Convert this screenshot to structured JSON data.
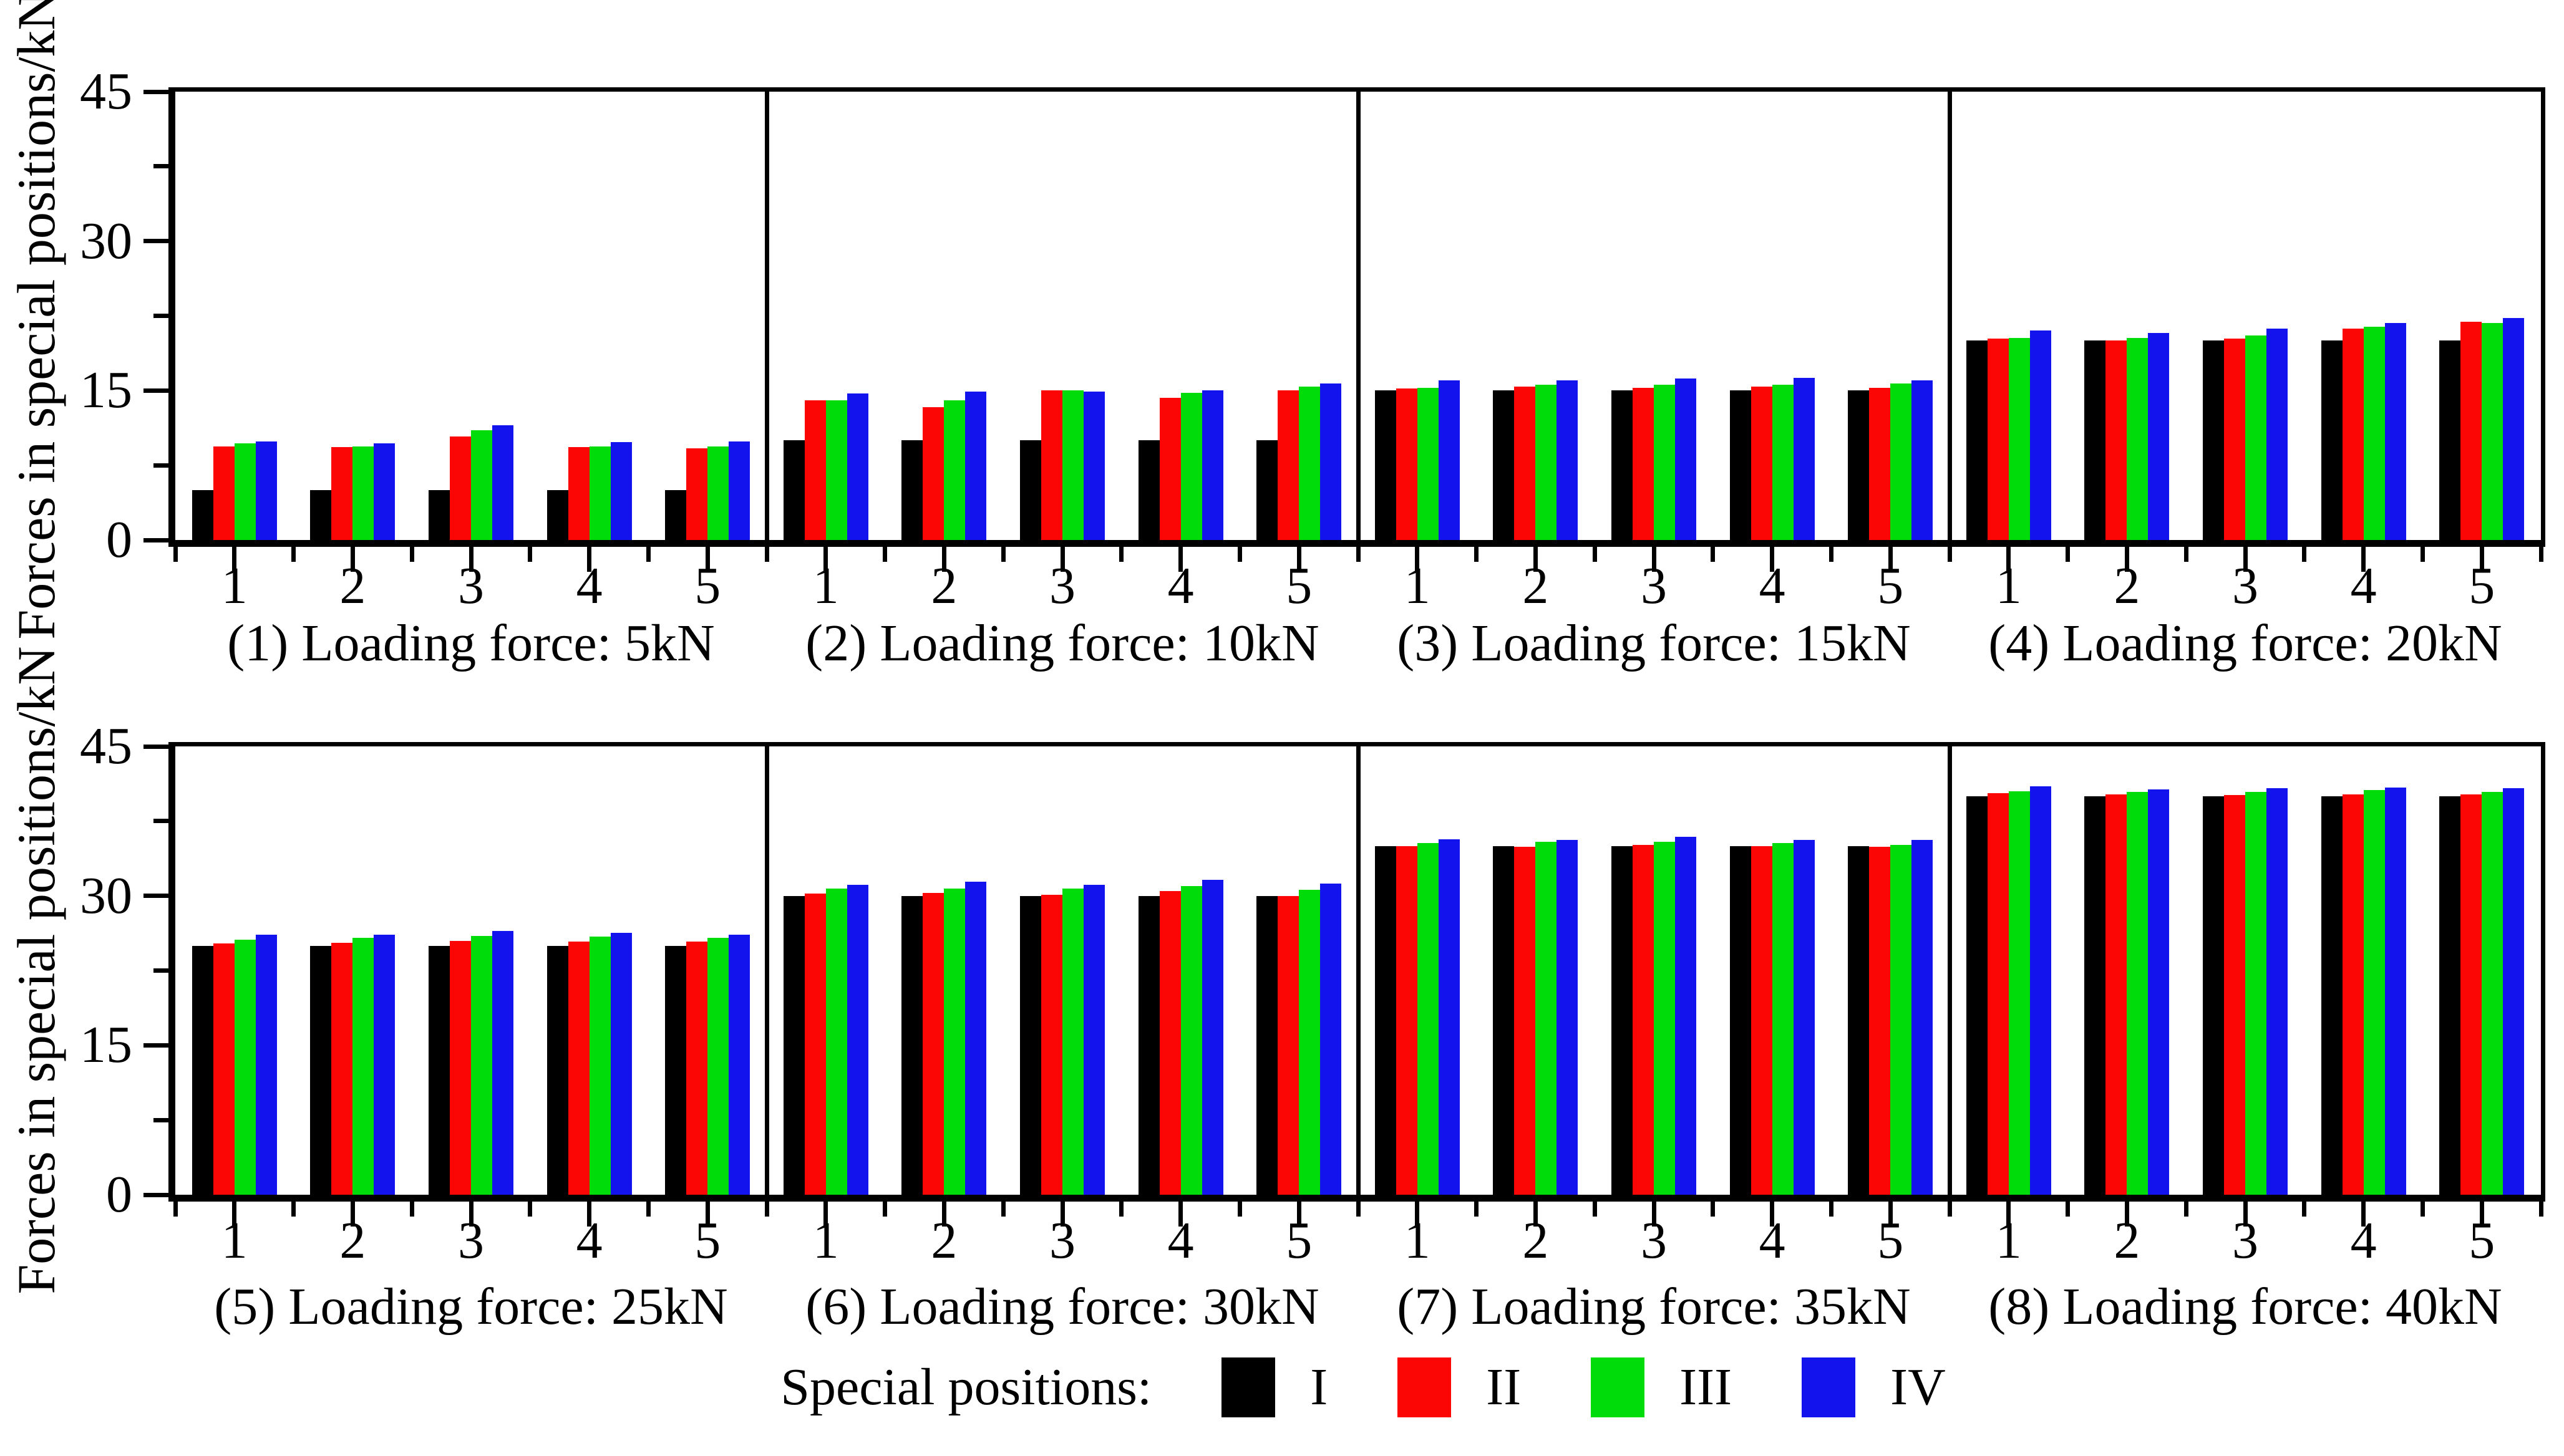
{
  "figure": {
    "y_axis_label": "Forces in special positions/kN",
    "y_tick_labels": [
      "0",
      "15",
      "30",
      "45"
    ],
    "y_major_ticks": [
      0,
      15,
      30,
      45
    ],
    "y_minor_ticks": [
      7.5,
      22.5,
      37.5
    ],
    "ylim": [
      0,
      45
    ],
    "legend": {
      "title": "Special positions:",
      "entries": [
        {
          "label": "I",
          "color": "#000000"
        },
        {
          "label": "II",
          "color": "#fb0505"
        },
        {
          "label": "III",
          "color": "#00dc0a"
        },
        {
          "label": "IV",
          "color": "#1313ee"
        }
      ]
    }
  },
  "chart_data": [
    {
      "type": "bar",
      "caption": "(1) Loading force: 5kN",
      "categories": [
        "1",
        "2",
        "3",
        "4",
        "5"
      ],
      "ylim": [
        0,
        45
      ],
      "series": [
        {
          "name": "I",
          "values": [
            5,
            5,
            5,
            5,
            5
          ]
        },
        {
          "name": "II",
          "values": [
            9.4,
            9.3,
            10.4,
            9.3,
            9.2
          ]
        },
        {
          "name": "III",
          "values": [
            9.7,
            9.4,
            11.0,
            9.4,
            9.4
          ]
        },
        {
          "name": "IV",
          "values": [
            9.9,
            9.7,
            11.5,
            9.8,
            9.9
          ]
        }
      ]
    },
    {
      "type": "bar",
      "caption": "(2) Loading force: 10kN",
      "categories": [
        "1",
        "2",
        "3",
        "4",
        "5"
      ],
      "ylim": [
        0,
        45
      ],
      "series": [
        {
          "name": "I",
          "values": [
            10,
            10,
            10,
            10,
            10
          ]
        },
        {
          "name": "II",
          "values": [
            14.0,
            13.3,
            15.0,
            14.3,
            15.0
          ]
        },
        {
          "name": "III",
          "values": [
            14.0,
            14.0,
            15.0,
            14.8,
            15.4
          ]
        },
        {
          "name": "IV",
          "values": [
            14.7,
            14.9,
            14.9,
            15.0,
            15.7
          ]
        }
      ]
    },
    {
      "type": "bar",
      "caption": "(3) Loading force: 15kN",
      "categories": [
        "1",
        "2",
        "3",
        "4",
        "5"
      ],
      "ylim": [
        0,
        45
      ],
      "series": [
        {
          "name": "I",
          "values": [
            15,
            15,
            15,
            15,
            15
          ]
        },
        {
          "name": "II",
          "values": [
            15.2,
            15.4,
            15.3,
            15.4,
            15.3
          ]
        },
        {
          "name": "III",
          "values": [
            15.3,
            15.6,
            15.6,
            15.6,
            15.7
          ]
        },
        {
          "name": "IV",
          "values": [
            16.0,
            16.0,
            16.2,
            16.3,
            16.0
          ]
        }
      ]
    },
    {
      "type": "bar",
      "caption": "(4) Loading force: 20kN",
      "categories": [
        "1",
        "2",
        "3",
        "4",
        "5"
      ],
      "ylim": [
        0,
        45
      ],
      "series": [
        {
          "name": "I",
          "values": [
            20,
            20,
            20,
            20,
            20
          ]
        },
        {
          "name": "II",
          "values": [
            20.2,
            20.0,
            20.2,
            21.2,
            21.9
          ]
        },
        {
          "name": "III",
          "values": [
            20.3,
            20.3,
            20.5,
            21.4,
            21.8
          ]
        },
        {
          "name": "IV",
          "values": [
            21.0,
            20.8,
            21.2,
            21.8,
            22.3
          ]
        }
      ]
    },
    {
      "type": "bar",
      "caption": "(5) Loading force: 25kN",
      "categories": [
        "1",
        "2",
        "3",
        "4",
        "5"
      ],
      "ylim": [
        0,
        45
      ],
      "series": [
        {
          "name": "I",
          "values": [
            25,
            25,
            25,
            25,
            25
          ]
        },
        {
          "name": "II",
          "values": [
            25.2,
            25.3,
            25.5,
            25.4,
            25.4
          ]
        },
        {
          "name": "III",
          "values": [
            25.6,
            25.8,
            26.0,
            25.9,
            25.8
          ]
        },
        {
          "name": "IV",
          "values": [
            26.1,
            26.1,
            26.5,
            26.3,
            26.1
          ]
        }
      ]
    },
    {
      "type": "bar",
      "caption": "(6) Loading force: 30kN",
      "categories": [
        "1",
        "2",
        "3",
        "4",
        "5"
      ],
      "ylim": [
        0,
        45
      ],
      "series": [
        {
          "name": "I",
          "values": [
            30,
            30,
            30,
            30,
            30
          ]
        },
        {
          "name": "II",
          "values": [
            30.2,
            30.3,
            30.1,
            30.5,
            30.0
          ]
        },
        {
          "name": "III",
          "values": [
            30.7,
            30.7,
            30.7,
            31.0,
            30.6
          ]
        },
        {
          "name": "IV",
          "values": [
            31.1,
            31.4,
            31.1,
            31.6,
            31.2
          ]
        }
      ]
    },
    {
      "type": "bar",
      "caption": "(7) Loading force: 35kN",
      "categories": [
        "1",
        "2",
        "3",
        "4",
        "5"
      ],
      "ylim": [
        0,
        45
      ],
      "series": [
        {
          "name": "I",
          "values": [
            35,
            35,
            35,
            35,
            35
          ]
        },
        {
          "name": "II",
          "values": [
            35.0,
            34.9,
            35.1,
            35.0,
            34.9
          ]
        },
        {
          "name": "III",
          "values": [
            35.3,
            35.4,
            35.4,
            35.3,
            35.1
          ]
        },
        {
          "name": "IV",
          "values": [
            35.7,
            35.6,
            35.9,
            35.6,
            35.6
          ]
        }
      ]
    },
    {
      "type": "bar",
      "caption": "(8) Loading force: 40kN",
      "categories": [
        "1",
        "2",
        "3",
        "4",
        "5"
      ],
      "ylim": [
        0,
        45
      ],
      "series": [
        {
          "name": "I",
          "values": [
            40,
            40,
            40,
            40,
            40
          ]
        },
        {
          "name": "II",
          "values": [
            40.3,
            40.2,
            40.1,
            40.2,
            40.2
          ]
        },
        {
          "name": "III",
          "values": [
            40.5,
            40.4,
            40.4,
            40.6,
            40.4
          ]
        },
        {
          "name": "IV",
          "values": [
            41.0,
            40.7,
            40.8,
            40.9,
            40.8
          ]
        }
      ]
    }
  ]
}
